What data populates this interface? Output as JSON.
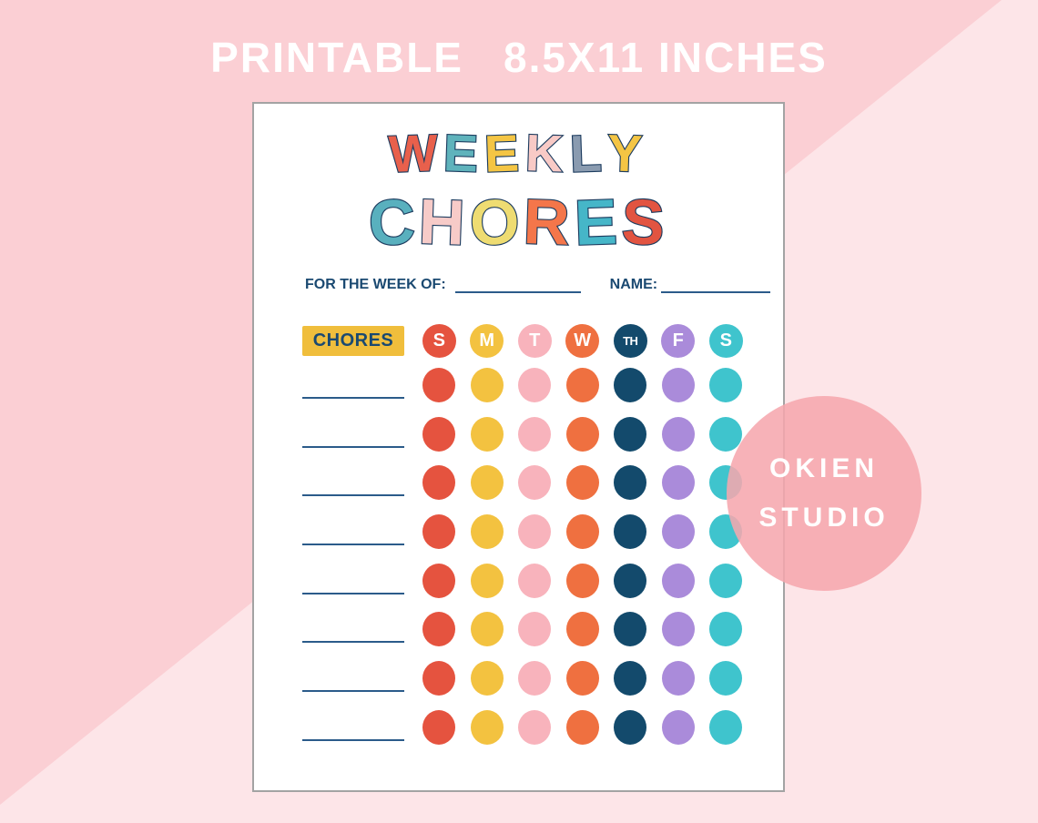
{
  "banner": {
    "left": "PRINTABLE",
    "right": "8.5X11 INCHES"
  },
  "sheet": {
    "title_line1": [
      {
        "ch": "W",
        "color": "#E8604C"
      },
      {
        "ch": "E",
        "color": "#5FB3BC"
      },
      {
        "ch": "E",
        "color": "#F4C544"
      },
      {
        "ch": "K",
        "color": "#F8CAC6"
      },
      {
        "ch": "L",
        "color": "#8A9BB0"
      },
      {
        "ch": "Y",
        "color": "#F4C544"
      }
    ],
    "title_line2": [
      {
        "ch": "C",
        "color": "#59B0BE"
      },
      {
        "ch": "H",
        "color": "#F7CBC8"
      },
      {
        "ch": "O",
        "color": "#EEDC72"
      },
      {
        "ch": "R",
        "color": "#F4764A"
      },
      {
        "ch": "E",
        "color": "#46B6C8"
      },
      {
        "ch": "S",
        "color": "#E25441"
      }
    ],
    "week_of_label": "FOR THE WEEK OF:",
    "name_label": "NAME:",
    "chores_header": "CHORES",
    "days": [
      {
        "label": "S",
        "color": "#E5533F"
      },
      {
        "label": "M",
        "color": "#F3C240"
      },
      {
        "label": "T",
        "color": "#F8B3BC"
      },
      {
        "label": "W",
        "color": "#EF7040"
      },
      {
        "label": "TH",
        "color": "#134A6C"
      },
      {
        "label": "F",
        "color": "#AA8BDA"
      },
      {
        "label": "S",
        "color": "#3FC4CD"
      }
    ],
    "chore_rows": 8
  },
  "badge": {
    "line1": "OKIEN",
    "line2": "STUDIO"
  },
  "colors": {
    "background_light_pink": "#FDE5E8",
    "background_dark_pink": "#FBCFD4",
    "banner_text": "#FFFFFF",
    "navy_text": "#1A4971",
    "write_line_blue": "#2B5B8A",
    "chores_box_yellow": "#F0BE3C",
    "title_outline_navy": "#1D3C5F",
    "badge_pink": "rgba(246,167,173,0.87)",
    "paper_border_gray": "#A3A3A3"
  }
}
